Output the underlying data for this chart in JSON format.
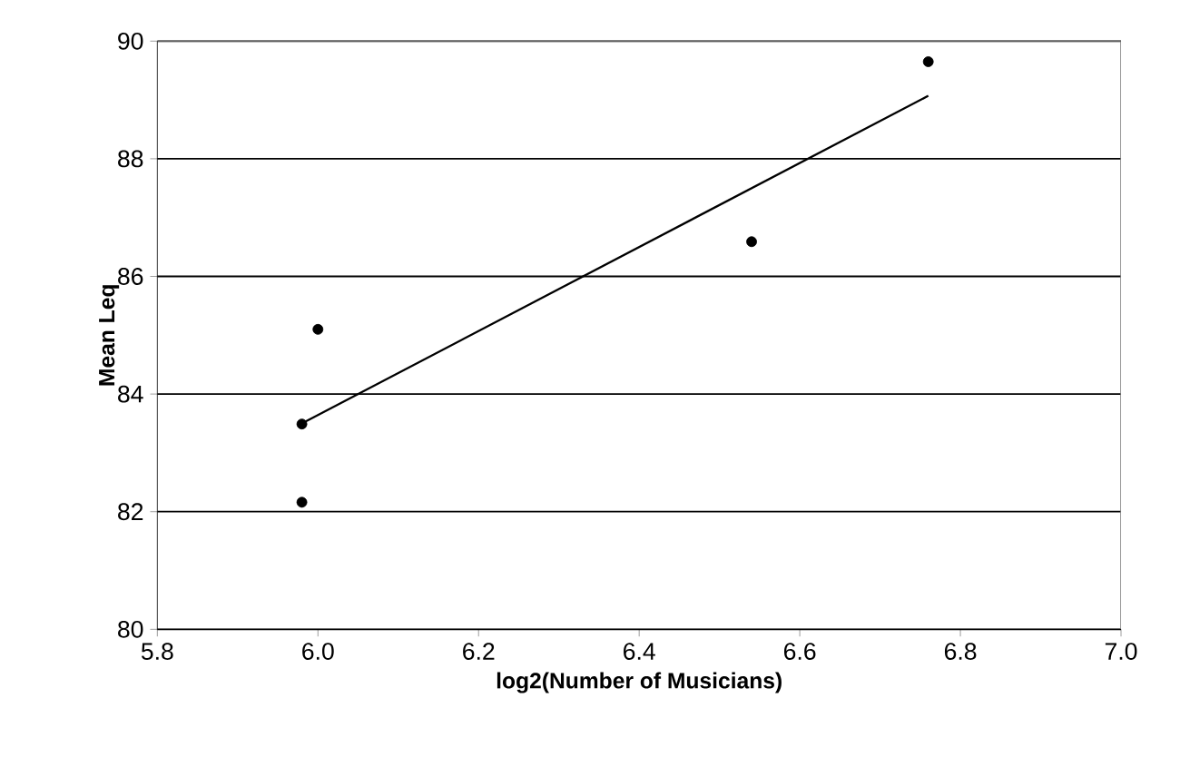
{
  "chart_data": {
    "type": "scatter",
    "xlabel": "log2(Number of Musicians)",
    "ylabel": "Mean Leq",
    "xlim": [
      5.8,
      7.0
    ],
    "ylim": [
      80,
      90
    ],
    "xticks": [
      {
        "value": 5.8,
        "label": "5.8"
      },
      {
        "value": 6.0,
        "label": "6.0"
      },
      {
        "value": 6.2,
        "label": "6.2"
      },
      {
        "value": 6.4,
        "label": "6.4"
      },
      {
        "value": 6.6,
        "label": "6.6"
      },
      {
        "value": 6.8,
        "label": "6.8"
      },
      {
        "value": 7.0,
        "label": "7.0"
      }
    ],
    "yticks": [
      80,
      82,
      84,
      86,
      88,
      90
    ],
    "grid": "y",
    "series": [
      {
        "type": "scatter",
        "color": "#000000",
        "marker": "circle",
        "x": [
          5.98,
          5.98,
          6.0,
          6.54,
          6.76
        ],
        "values": [
          83.49,
          82.16,
          85.1,
          86.59,
          89.65
        ]
      },
      {
        "type": "line",
        "color": "#000000",
        "x": [
          5.98,
          6.76
        ],
        "values": [
          83.5,
          89.07
        ],
        "marker": "none",
        "line_style": "solid"
      }
    ]
  }
}
